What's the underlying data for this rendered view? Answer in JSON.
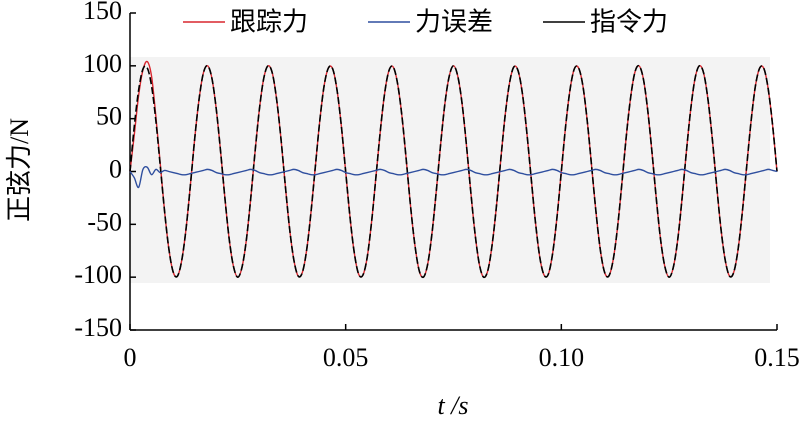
{
  "chart_data": {
    "type": "line",
    "xlabel": "t /s",
    "ylabel": "正弦力/N",
    "xlim": [
      0,
      0.15
    ],
    "ylim": [
      -150,
      150
    ],
    "xticks": [
      0,
      0.05,
      {
        "value": 0.1,
        "label": "0.10"
      },
      0.15
    ],
    "yticks": [
      -150,
      -100,
      -50,
      0,
      50,
      100,
      150
    ],
    "legend": "top",
    "x": [
      0,
      0.001,
      0.002,
      0.003,
      0.004,
      0.005,
      0.006,
      0.007,
      0.008,
      0.009,
      0.01,
      0.011,
      0.012,
      0.013,
      0.014,
      0.015,
      0.016,
      0.017,
      0.018,
      0.019,
      0.02,
      0.021,
      0.022,
      0.023,
      0.024,
      0.025,
      0.026,
      0.027,
      0.028,
      0.029,
      0.03,
      0.031,
      0.032,
      0.033,
      0.034,
      0.035,
      0.036,
      0.037,
      0.038,
      0.039,
      0.04,
      0.041,
      0.042,
      0.043,
      0.044,
      0.045,
      0.046,
      0.047,
      0.048,
      0.049,
      0.05,
      0.051,
      0.052,
      0.053,
      0.054,
      0.055,
      0.056,
      0.057,
      0.058,
      0.059,
      0.06,
      0.061,
      0.062,
      0.063,
      0.064,
      0.065,
      0.066,
      0.067,
      0.068,
      0.069,
      0.07,
      0.071,
      0.072,
      0.073,
      0.074,
      0.075,
      0.076,
      0.077,
      0.078,
      0.079,
      0.08,
      0.081,
      0.082,
      0.083,
      0.084,
      0.085,
      0.086,
      0.087,
      0.088,
      0.089,
      0.09,
      0.091,
      0.092,
      0.093,
      0.094,
      0.095,
      0.096,
      0.097,
      0.098,
      0.099,
      0.1,
      0.101,
      0.102,
      0.103,
      0.104,
      0.105,
      0.106,
      0.107,
      0.108,
      0.109,
      0.11,
      0.111,
      0.112,
      0.113,
      0.114,
      0.115,
      0.116,
      0.117,
      0.118,
      0.119,
      0.12,
      0.121,
      0.122,
      0.123,
      0.124,
      0.125,
      0.126,
      0.127,
      0.128,
      0.129,
      0.13,
      0.131,
      0.132,
      0.133,
      0.134,
      0.135,
      0.136,
      0.137,
      0.138,
      0.139,
      0.14,
      0.141,
      0.142,
      0.143,
      0.144,
      0.145,
      0.146,
      0.147,
      0.148,
      0.149,
      0.15
    ],
    "series": [
      {
        "name": "跟踪力",
        "color": "#d9262e",
        "values": [
          0,
          35,
          72,
          96,
          104,
          90,
          52,
          8,
          -37,
          -73,
          -95,
          -99,
          -84,
          -54,
          -13,
          31,
          68,
          93,
          100,
          88,
          59,
          19,
          -25,
          -64,
          -90,
          -100,
          -90,
          -64,
          -25,
          19,
          59,
          88,
          100,
          93,
          68,
          31,
          -13,
          -54,
          -84,
          -99,
          -95,
          -73,
          -37,
          6,
          48,
          81,
          98,
          97,
          77,
          43,
          0,
          -43,
          -77,
          -97,
          -98,
          -81,
          -48,
          -6,
          37,
          73,
          95,
          99,
          84,
          54,
          13,
          -31,
          -68,
          -93,
          -100,
          -88,
          -59,
          -19,
          25,
          64,
          90,
          100,
          90,
          64,
          25,
          -19,
          -59,
          -88,
          -100,
          -93,
          -68,
          -31,
          13,
          54,
          84,
          99,
          95,
          73,
          37,
          -6,
          -48,
          -81,
          -98,
          -97,
          -77,
          -43,
          0,
          43,
          77,
          97,
          98,
          81,
          48,
          6,
          -37,
          -73,
          -95,
          -99,
          -84,
          -54,
          -13,
          31,
          68,
          93,
          100,
          88,
          59,
          19,
          -25,
          -64,
          -90,
          -100,
          -90,
          -64,
          -25,
          19,
          59,
          88,
          100,
          93,
          68,
          31,
          -13,
          -54,
          -84,
          -99,
          -95,
          -73,
          -37,
          6,
          48,
          81,
          98,
          97,
          77,
          43,
          0
        ]
      },
      {
        "name": "力误差",
        "color": "#2f4f9f",
        "values": [
          0,
          -6,
          -15,
          2,
          4,
          -3,
          2,
          -1,
          1,
          0,
          -1,
          -2,
          -3,
          -3,
          -2,
          -1,
          0,
          1,
          2,
          1,
          -1,
          -2,
          -3,
          -3,
          -2,
          -1,
          0,
          1,
          2,
          1,
          -1,
          -2,
          -3,
          -3,
          -2,
          -1,
          0,
          1,
          2,
          1,
          -1,
          -2,
          -3,
          -3,
          -2,
          -1,
          0,
          1,
          2,
          1,
          -1,
          -2,
          -3,
          -3,
          -2,
          -1,
          0,
          1,
          2,
          1,
          -1,
          -2,
          -3,
          -3,
          -2,
          -1,
          0,
          1,
          2,
          1,
          -1,
          -2,
          -3,
          -3,
          -2,
          -1,
          0,
          1,
          2,
          1,
          -1,
          -2,
          -3,
          -3,
          -2,
          -1,
          0,
          1,
          2,
          1,
          -1,
          -2,
          -3,
          -3,
          -2,
          -1,
          0,
          1,
          2,
          1,
          -1,
          -2,
          -3,
          -3,
          -2,
          -1,
          0,
          1,
          2,
          1,
          -1,
          -2,
          -3,
          -3,
          -2,
          -1,
          0,
          1,
          2,
          1,
          -1,
          -2,
          -3,
          -3,
          -2,
          -1,
          0,
          1,
          2,
          1,
          -1,
          -2,
          -3,
          -3,
          -2,
          -1,
          0,
          1,
          2,
          1,
          -1,
          -2,
          -3,
          -3,
          -2,
          -1,
          0,
          1,
          2,
          1,
          0
        ]
      },
      {
        "name": "指令力",
        "color": "#000000",
        "values": [
          0,
          43,
          77,
          97,
          98,
          81,
          48,
          6,
          -37,
          -73,
          -95,
          -99,
          -84,
          -54,
          -13,
          31,
          68,
          93,
          100,
          88,
          59,
          19,
          -25,
          -64,
          -90,
          -100,
          -90,
          -64,
          -25,
          19,
          59,
          88,
          100,
          93,
          68,
          31,
          -13,
          -54,
          -84,
          -99,
          -95,
          -73,
          -37,
          6,
          48,
          81,
          98,
          97,
          77,
          43,
          0,
          -43,
          -77,
          -97,
          -98,
          -81,
          -48,
          -6,
          37,
          73,
          95,
          99,
          84,
          54,
          13,
          -31,
          -68,
          -93,
          -100,
          -88,
          -59,
          -19,
          25,
          64,
          90,
          100,
          90,
          64,
          25,
          -19,
          -59,
          -88,
          -100,
          -93,
          -68,
          -31,
          13,
          54,
          84,
          99,
          95,
          73,
          37,
          -6,
          -48,
          -81,
          -98,
          -97,
          -77,
          -43,
          0,
          43,
          77,
          97,
          98,
          81,
          48,
          6,
          -37,
          -73,
          -95,
          -99,
          -84,
          -54,
          -13,
          31,
          68,
          93,
          100,
          88,
          59,
          19,
          -25,
          -64,
          -90,
          -100,
          -90,
          -64,
          -25,
          19,
          59,
          88,
          100,
          93,
          68,
          31,
          -13,
          -54,
          -84,
          -99,
          -95,
          -73,
          -37,
          6,
          48,
          81,
          98,
          97,
          77,
          43,
          0
        ]
      }
    ]
  }
}
